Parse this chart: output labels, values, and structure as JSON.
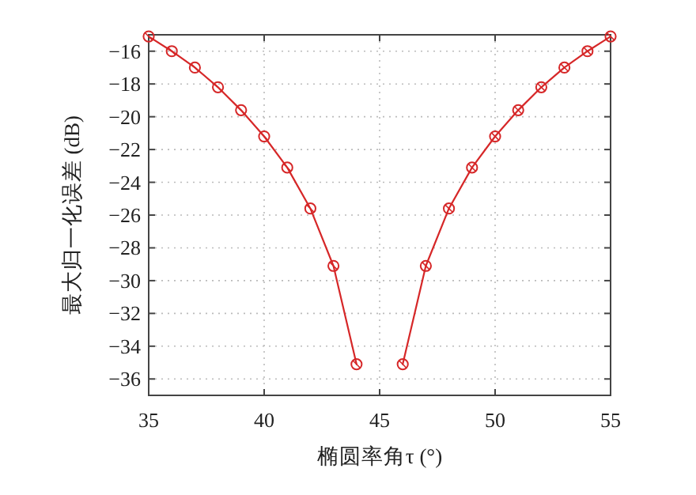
{
  "chart_data": {
    "type": "line",
    "xlabel": "椭圆率角τ (°)",
    "ylabel": "最大归一化误差 (dB)",
    "x": [
      35,
      36,
      37,
      38,
      39,
      40,
      41,
      42,
      43,
      44,
      45,
      46,
      47,
      48,
      49,
      50,
      51,
      52,
      53,
      54,
      55
    ],
    "series": [
      {
        "color": "#d62728",
        "values": [
          -15.1,
          -16.0,
          -17.0,
          -18.2,
          -19.6,
          -21.2,
          -23.1,
          -25.6,
          -29.1,
          -35.1,
          null,
          -35.1,
          -29.1,
          -25.6,
          -23.1,
          -21.2,
          -19.6,
          -18.2,
          -17.0,
          -16.0,
          -15.1
        ]
      }
    ],
    "xlim": [
      35,
      55
    ],
    "ylim": [
      -37,
      -15
    ],
    "xticks": [
      35,
      40,
      45,
      50,
      55
    ],
    "yticks": [
      -16,
      -18,
      -20,
      -22,
      -24,
      -26,
      -28,
      -30,
      -32,
      -34,
      -36
    ],
    "grid": true,
    "marker": "circle",
    "line_style": "solid"
  }
}
